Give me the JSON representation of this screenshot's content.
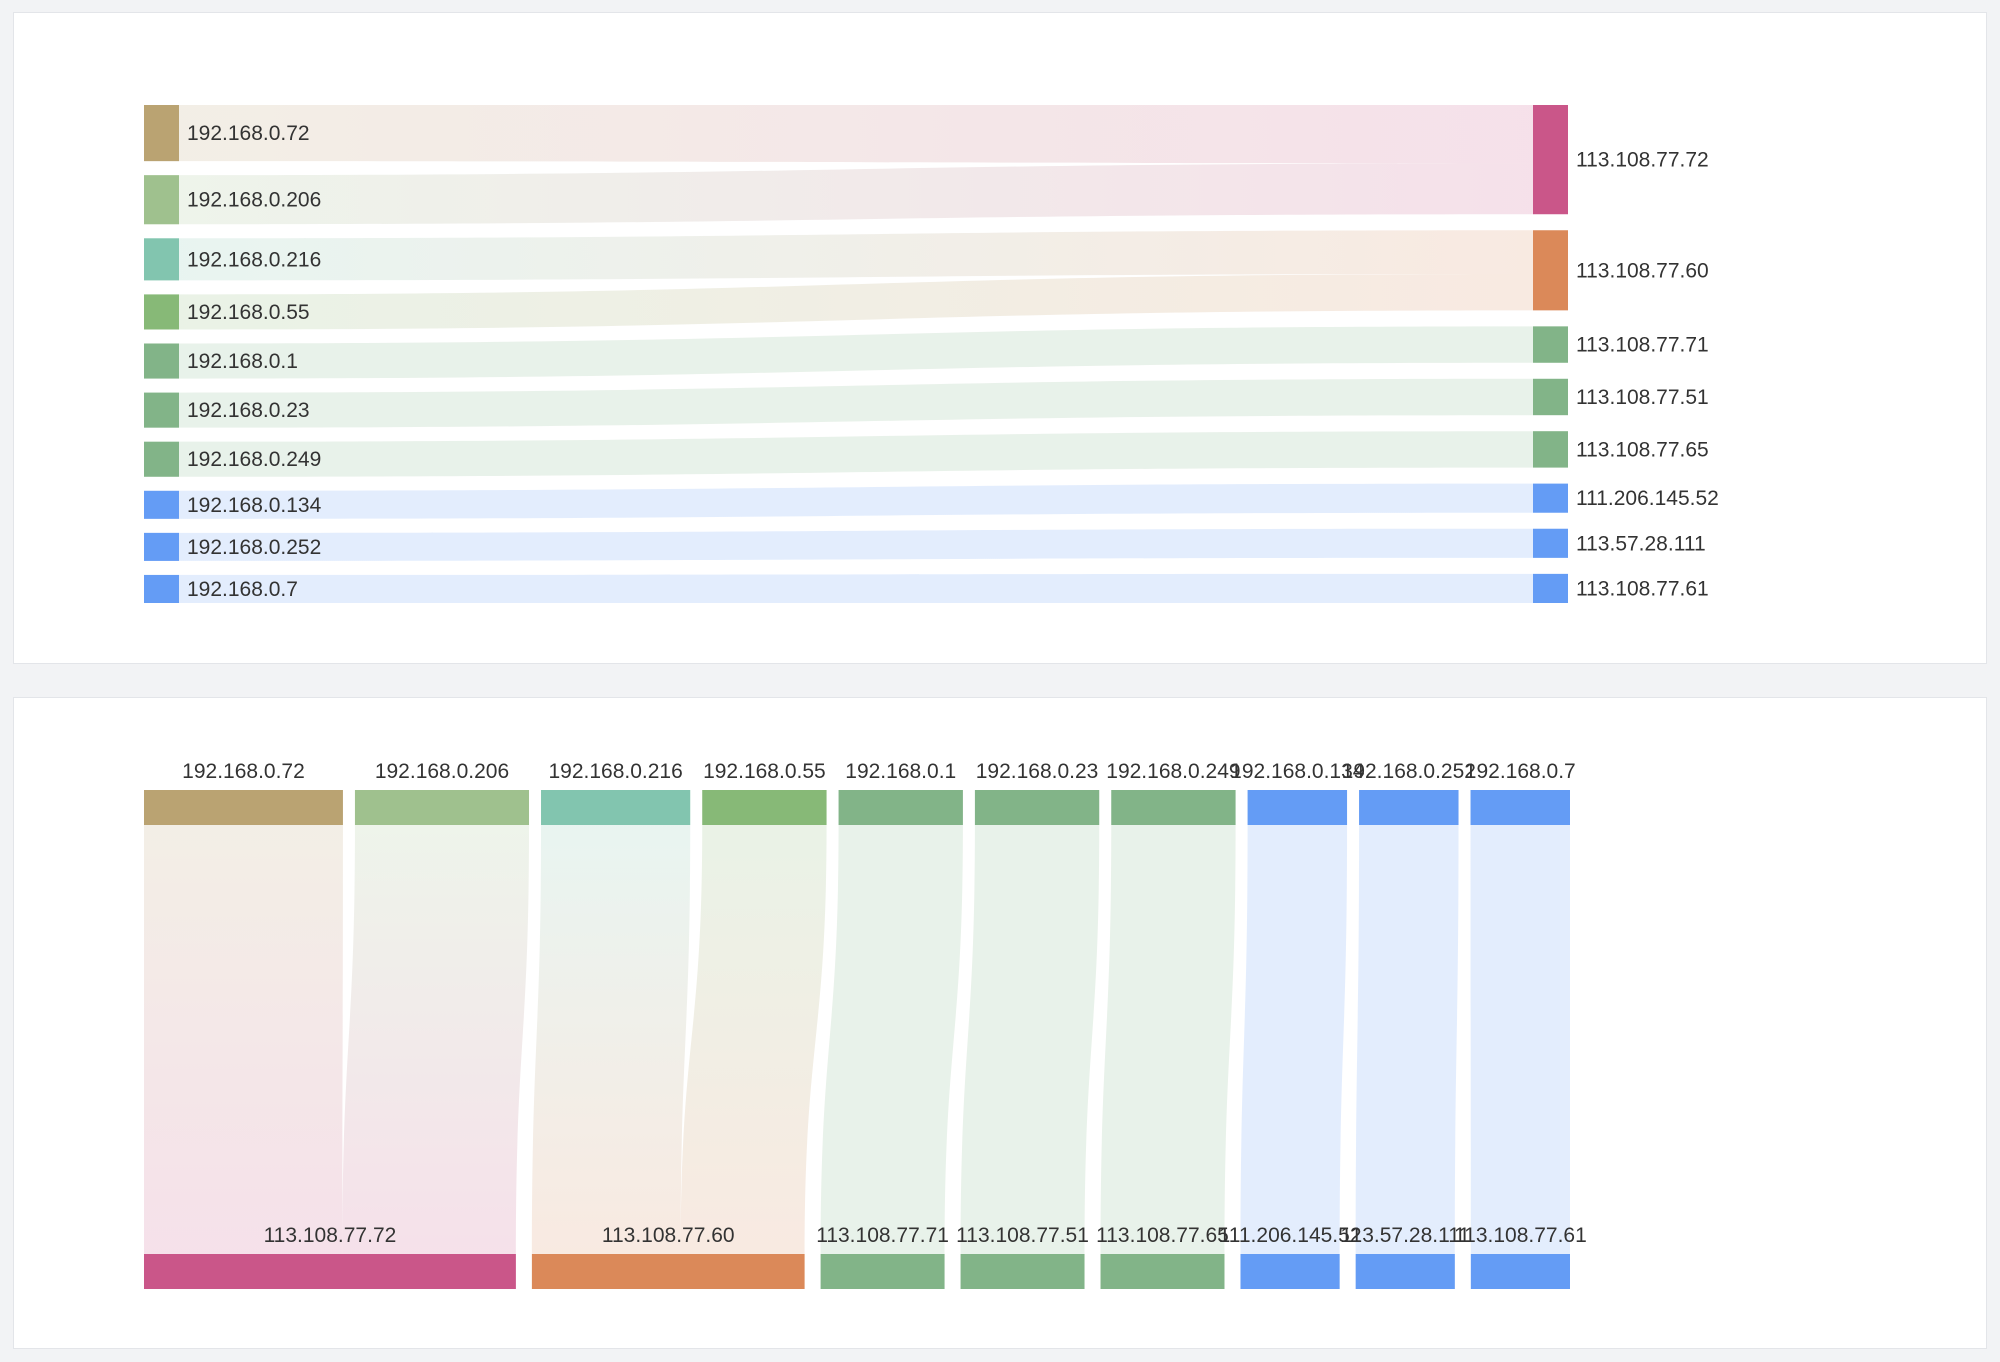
{
  "chart_data": [
    {
      "type": "sankey",
      "orientation": "horizontal",
      "sources": [
        {
          "name": "192.168.0.72",
          "color": "#baa372"
        },
        {
          "name": "192.168.0.206",
          "color": "#9fc18e"
        },
        {
          "name": "192.168.0.216",
          "color": "#82c5af"
        },
        {
          "name": "192.168.0.55",
          "color": "#87b977"
        },
        {
          "name": "192.168.0.1",
          "color": "#82b488"
        },
        {
          "name": "192.168.0.23",
          "color": "#82b488"
        },
        {
          "name": "192.168.0.249",
          "color": "#82b488"
        },
        {
          "name": "192.168.0.134",
          "color": "#649cf5"
        },
        {
          "name": "192.168.0.252",
          "color": "#649cf5"
        },
        {
          "name": "192.168.0.7",
          "color": "#649cf5"
        }
      ],
      "targets": [
        {
          "name": "113.108.77.72",
          "color": "#ca5689"
        },
        {
          "name": "113.108.77.60",
          "color": "#db8959"
        },
        {
          "name": "113.108.77.71",
          "color": "#82b488"
        },
        {
          "name": "113.108.77.51",
          "color": "#82b488"
        },
        {
          "name": "113.108.77.65",
          "color": "#82b488"
        },
        {
          "name": "111.206.145.52",
          "color": "#649cf5"
        },
        {
          "name": "113.57.28.111",
          "color": "#649cf5"
        },
        {
          "name": "113.108.77.61",
          "color": "#649cf5"
        }
      ],
      "links": [
        {
          "source": "192.168.0.72",
          "target": "113.108.77.72",
          "value": 1.6
        },
        {
          "source": "192.168.0.206",
          "target": "113.108.77.72",
          "value": 1.4
        },
        {
          "source": "192.168.0.216",
          "target": "113.108.77.60",
          "value": 1.2
        },
        {
          "source": "192.168.0.55",
          "target": "113.108.77.60",
          "value": 1.0
        },
        {
          "source": "192.168.0.1",
          "target": "113.108.77.71",
          "value": 1.0
        },
        {
          "source": "192.168.0.23",
          "target": "113.108.77.51",
          "value": 1.0
        },
        {
          "source": "192.168.0.249",
          "target": "113.108.77.65",
          "value": 1.0
        },
        {
          "source": "192.168.0.134",
          "target": "111.206.145.52",
          "value": 0.8
        },
        {
          "source": "192.168.0.252",
          "target": "113.57.28.111",
          "value": 0.8
        },
        {
          "source": "192.168.0.7",
          "target": "113.108.77.61",
          "value": 0.8
        }
      ]
    },
    {
      "type": "sankey",
      "orientation": "vertical",
      "sources": [
        {
          "name": "192.168.0.72",
          "color": "#baa372"
        },
        {
          "name": "192.168.0.206",
          "color": "#9fc18e"
        },
        {
          "name": "192.168.0.216",
          "color": "#82c5af"
        },
        {
          "name": "192.168.0.55",
          "color": "#87b977"
        },
        {
          "name": "192.168.0.1",
          "color": "#82b488"
        },
        {
          "name": "192.168.0.23",
          "color": "#82b488"
        },
        {
          "name": "192.168.0.249",
          "color": "#82b488"
        },
        {
          "name": "192.168.0.134",
          "color": "#649cf5"
        },
        {
          "name": "192.168.0.252",
          "color": "#649cf5"
        },
        {
          "name": "192.168.0.7",
          "color": "#649cf5"
        }
      ],
      "targets": [
        {
          "name": "113.108.77.72",
          "color": "#ca5689"
        },
        {
          "name": "113.108.77.60",
          "color": "#db8959"
        },
        {
          "name": "113.108.77.71",
          "color": "#82b488"
        },
        {
          "name": "113.108.77.51",
          "color": "#82b488"
        },
        {
          "name": "113.108.77.65",
          "color": "#82b488"
        },
        {
          "name": "111.206.145.52",
          "color": "#649cf5"
        },
        {
          "name": "113.57.28.111",
          "color": "#649cf5"
        },
        {
          "name": "113.108.77.61",
          "color": "#649cf5"
        }
      ],
      "links": [
        {
          "source": "192.168.0.72",
          "target": "113.108.77.72",
          "value": 1.6
        },
        {
          "source": "192.168.0.206",
          "target": "113.108.77.72",
          "value": 1.4
        },
        {
          "source": "192.168.0.216",
          "target": "113.108.77.60",
          "value": 1.2
        },
        {
          "source": "192.168.0.55",
          "target": "113.108.77.60",
          "value": 1.0
        },
        {
          "source": "192.168.0.1",
          "target": "113.108.77.71",
          "value": 1.0
        },
        {
          "source": "192.168.0.23",
          "target": "113.108.77.51",
          "value": 1.0
        },
        {
          "source": "192.168.0.249",
          "target": "113.108.77.65",
          "value": 1.0
        },
        {
          "source": "192.168.0.134",
          "target": "111.206.145.52",
          "value": 0.8
        },
        {
          "source": "192.168.0.252",
          "target": "113.57.28.111",
          "value": 0.8
        },
        {
          "source": "192.168.0.7",
          "target": "113.108.77.61",
          "value": 0.8
        }
      ]
    }
  ]
}
